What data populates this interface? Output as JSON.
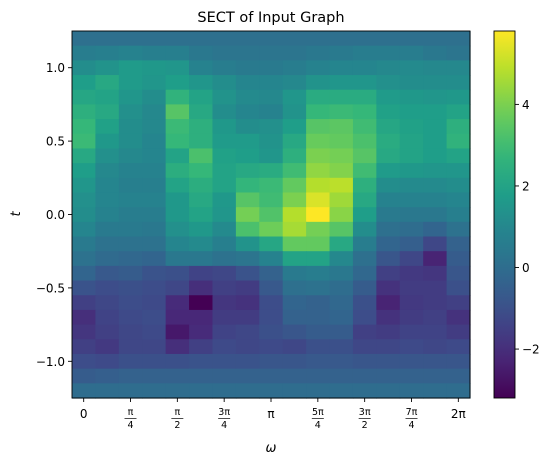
{
  "chart_data": {
    "type": "heatmap",
    "title": "SECT of Input Graph",
    "xlabel": "ω",
    "ylabel": "t",
    "x_ticks": [
      {
        "value": 0,
        "label": "0",
        "frac": false
      },
      {
        "value": 0.7854,
        "label": "π|4",
        "frac": true
      },
      {
        "value": 1.5708,
        "label": "π|2",
        "frac": true
      },
      {
        "value": 2.3562,
        "label": "3π|4",
        "frac": true
      },
      {
        "value": 3.1416,
        "label": "π",
        "frac": false
      },
      {
        "value": 3.927,
        "label": "5π|4",
        "frac": true
      },
      {
        "value": 4.7124,
        "label": "3π|2",
        "frac": true
      },
      {
        "value": 5.4978,
        "label": "7π|4",
        "frac": true
      },
      {
        "value": 6.2832,
        "label": "2π",
        "frac": false
      }
    ],
    "y_ticks": [
      {
        "value": 1.0,
        "label": "1.0"
      },
      {
        "value": 0.5,
        "label": "0.5"
      },
      {
        "value": 0.0,
        "label": "0.0"
      },
      {
        "value": -0.5,
        "label": "−0.5"
      },
      {
        "value": -1.0,
        "label": "−1.0"
      }
    ],
    "xlim": [
      -0.196,
      6.479
    ],
    "ylim": [
      -1.25,
      1.25
    ],
    "colorbar": {
      "colormap": "viridis",
      "vmin": -3.2,
      "vmax": 5.8,
      "ticks": [
        {
          "value": 4,
          "label": "4"
        },
        {
          "value": 2,
          "label": "2"
        },
        {
          "value": 0,
          "label": "0"
        },
        {
          "value": -2,
          "label": "−2"
        }
      ]
    },
    "grid_shape": [
      25,
      17
    ],
    "values": [
      [
        0.1,
        0.1,
        0.1,
        0.1,
        0.1,
        0.1,
        0.1,
        0.1,
        0.1,
        0.1,
        0.1,
        0.1,
        0.1,
        0.1,
        0.1,
        0.1,
        0.1
      ],
      [
        0.6,
        0.7,
        0.8,
        0.7,
        0.7,
        0.4,
        0.3,
        0.3,
        0.3,
        0.3,
        0.4,
        0.5,
        0.6,
        0.6,
        0.6,
        0.4,
        0.3
      ],
      [
        1.2,
        1.4,
        1.7,
        1.6,
        1.5,
        0.8,
        0.6,
        0.5,
        0.5,
        0.6,
        0.8,
        0.9,
        0.9,
        1.0,
        1.1,
        1.0,
        1.0
      ],
      [
        1.8,
        2.2,
        1.7,
        1.5,
        1.8,
        1.5,
        1.2,
        0.9,
        0.9,
        1.0,
        1.4,
        1.5,
        1.5,
        1.3,
        1.2,
        1.2,
        1.2
      ],
      [
        2.1,
        2.0,
        1.5,
        1.2,
        2.6,
        2.0,
        1.4,
        1.1,
        1.0,
        1.5,
        2.3,
        2.3,
        2.3,
        1.7,
        1.6,
        1.5,
        1.6
      ],
      [
        2.5,
        2.2,
        1.3,
        1.0,
        3.4,
        2.2,
        1.2,
        0.9,
        0.8,
        1.4,
        2.8,
        2.9,
        2.8,
        1.9,
        1.8,
        1.8,
        2.0
      ],
      [
        2.8,
        1.9,
        1.2,
        1.0,
        2.9,
        2.5,
        1.6,
        1.2,
        1.3,
        1.8,
        3.4,
        3.5,
        3.0,
        2.1,
        1.9,
        1.8,
        2.5
      ],
      [
        2.9,
        1.6,
        1.2,
        0.9,
        2.8,
        2.5,
        1.7,
        1.7,
        1.4,
        2.2,
        3.7,
        3.6,
        3.2,
        2.3,
        2.0,
        1.8,
        2.6
      ],
      [
        2.2,
        1.3,
        1.0,
        0.9,
        2.0,
        3.2,
        1.9,
        1.8,
        1.5,
        2.5,
        4.0,
        3.9,
        3.4,
        2.2,
        2.0,
        1.8,
        2.0
      ],
      [
        1.8,
        1.0,
        0.8,
        0.8,
        2.4,
        2.8,
        2.0,
        2.2,
        2.3,
        3.0,
        4.3,
        4.1,
        3.0,
        1.7,
        1.6,
        1.5,
        1.5
      ],
      [
        1.5,
        0.9,
        0.7,
        0.7,
        2.0,
        2.4,
        2.0,
        2.7,
        2.9,
        3.6,
        4.8,
        4.9,
        2.5,
        1.2,
        1.1,
        1.1,
        1.2
      ],
      [
        1.3,
        0.9,
        0.8,
        0.8,
        1.6,
        2.2,
        1.6,
        3.4,
        3.0,
        4.0,
        5.3,
        4.5,
        2.2,
        0.8,
        0.8,
        0.8,
        0.9
      ],
      [
        1.2,
        0.8,
        0.6,
        0.6,
        1.6,
        2.0,
        1.5,
        3.9,
        3.3,
        4.8,
        5.8,
        4.2,
        1.8,
        0.5,
        0.4,
        0.4,
        0.7
      ],
      [
        0.9,
        0.5,
        0.5,
        0.4,
        1.3,
        1.6,
        1.1,
        3.2,
        3.8,
        4.6,
        3.9,
        3.4,
        1.2,
        0.1,
        0.0,
        -0.3,
        0.2
      ],
      [
        0.5,
        0.2,
        0.2,
        0.2,
        0.9,
        1.1,
        0.7,
        1.4,
        2.1,
        3.6,
        3.6,
        2.2,
        0.6,
        -0.3,
        -0.5,
        -1.3,
        -0.4
      ],
      [
        0.2,
        -0.1,
        -0.2,
        -0.3,
        0.4,
        0.4,
        0.2,
        0.3,
        0.8,
        2.0,
        2.0,
        1.0,
        0.1,
        -0.8,
        -1.3,
        -2.3,
        -0.6
      ],
      [
        -0.3,
        -0.7,
        -0.6,
        -0.9,
        -1.0,
        -1.4,
        -1.3,
        -0.9,
        -0.4,
        0.5,
        0.6,
        0.4,
        -0.2,
        -1.5,
        -1.7,
        -1.8,
        -0.8
      ],
      [
        -0.9,
        -1.1,
        -1.0,
        -1.1,
        -1.3,
        -2.0,
        -1.5,
        -1.6,
        -0.7,
        0.1,
        0.2,
        0.0,
        -0.6,
        -1.9,
        -1.6,
        -1.6,
        -1.0
      ],
      [
        -1.5,
        -1.3,
        -1.1,
        -1.2,
        -2.1,
        -3.2,
        -1.8,
        -1.9,
        -1.1,
        -0.3,
        -0.4,
        -0.2,
        -1.0,
        -2.3,
        -1.7,
        -1.6,
        -1.5
      ],
      [
        -2.0,
        -1.4,
        -1.2,
        -1.1,
        -2.2,
        -2.2,
        -1.6,
        -1.6,
        -1.1,
        -0.4,
        -0.4,
        -0.3,
        -1.1,
        -1.9,
        -1.6,
        -1.5,
        -1.9
      ],
      [
        -1.8,
        -1.5,
        -1.3,
        -1.2,
        -2.6,
        -2.1,
        -1.4,
        -1.3,
        -1.0,
        -0.8,
        -0.6,
        -0.6,
        -1.5,
        -1.6,
        -1.4,
        -1.4,
        -1.6
      ],
      [
        -1.5,
        -1.7,
        -1.3,
        -1.3,
        -2.0,
        -1.5,
        -1.2,
        -1.3,
        -1.2,
        -1.3,
        -1.0,
        -1.0,
        -1.3,
        -1.3,
        -1.2,
        -1.3,
        -1.2
      ],
      [
        -1.1,
        -1.2,
        -1.0,
        -1.0,
        -1.0,
        -0.9,
        -0.9,
        -0.9,
        -0.8,
        -0.8,
        -0.7,
        -0.7,
        -0.8,
        -0.8,
        -0.8,
        -0.8,
        -0.8
      ],
      [
        -0.6,
        -0.5,
        -0.4,
        -0.4,
        -0.4,
        -0.4,
        -0.4,
        -0.4,
        -0.4,
        -0.4,
        -0.4,
        -0.4,
        -0.4,
        -0.4,
        -0.4,
        -0.4,
        -0.4
      ],
      [
        0.0,
        0.0,
        0.0,
        0.0,
        0.0,
        0.0,
        0.0,
        0.0,
        0.0,
        0.0,
        0.0,
        0.0,
        0.0,
        0.0,
        0.0,
        0.0,
        0.0
      ]
    ]
  }
}
